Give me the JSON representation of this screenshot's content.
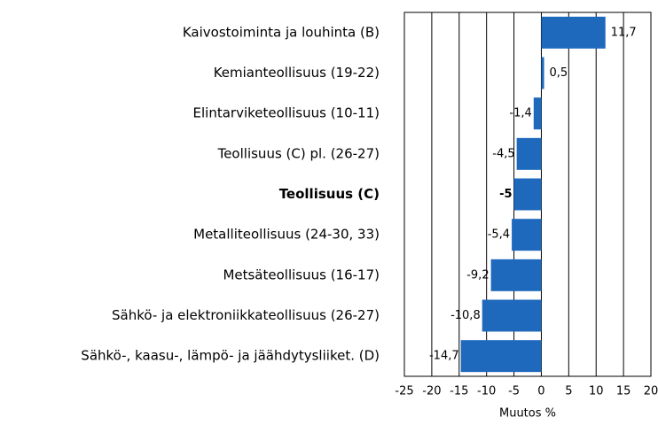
{
  "chart_data": {
    "type": "bar",
    "orientation": "horizontal",
    "x_label": "Muutos %",
    "categories": [
      "Kaivostoiminta  ja louhinta (B)",
      "Kemianteollisuus (19-22)",
      "Elintarviketeollisuus (10-11)",
      "Teollisuus (C) pl. (26-27)",
      "Teollisuus (C)",
      "Metalliteollisuus (24-30, 33)",
      "Metsäteollisuus (16-17)",
      "Sähkö- ja elektroniikkateollisuus (26-27)",
      "Sähkö-, kaasu-, lämpö- ja jäähdytysliiket. (D)"
    ],
    "emphasis": [
      false,
      false,
      false,
      false,
      true,
      false,
      false,
      false,
      false
    ],
    "values": [
      11.7,
      0.5,
      -1.4,
      -4.5,
      -5,
      -5.4,
      -9.2,
      -10.8,
      -14.7
    ],
    "value_labels": [
      "11,7",
      "0,5",
      "-1,4",
      "-4,5",
      "-5",
      "-5,4",
      "-9,2",
      "-10,8",
      "-14,7"
    ],
    "color": "#1f69bd",
    "xlim": [
      -25,
      20
    ],
    "xticks": [
      -25,
      -20,
      -15,
      -10,
      -5,
      0,
      5,
      10,
      15,
      20
    ],
    "grid": true
  }
}
